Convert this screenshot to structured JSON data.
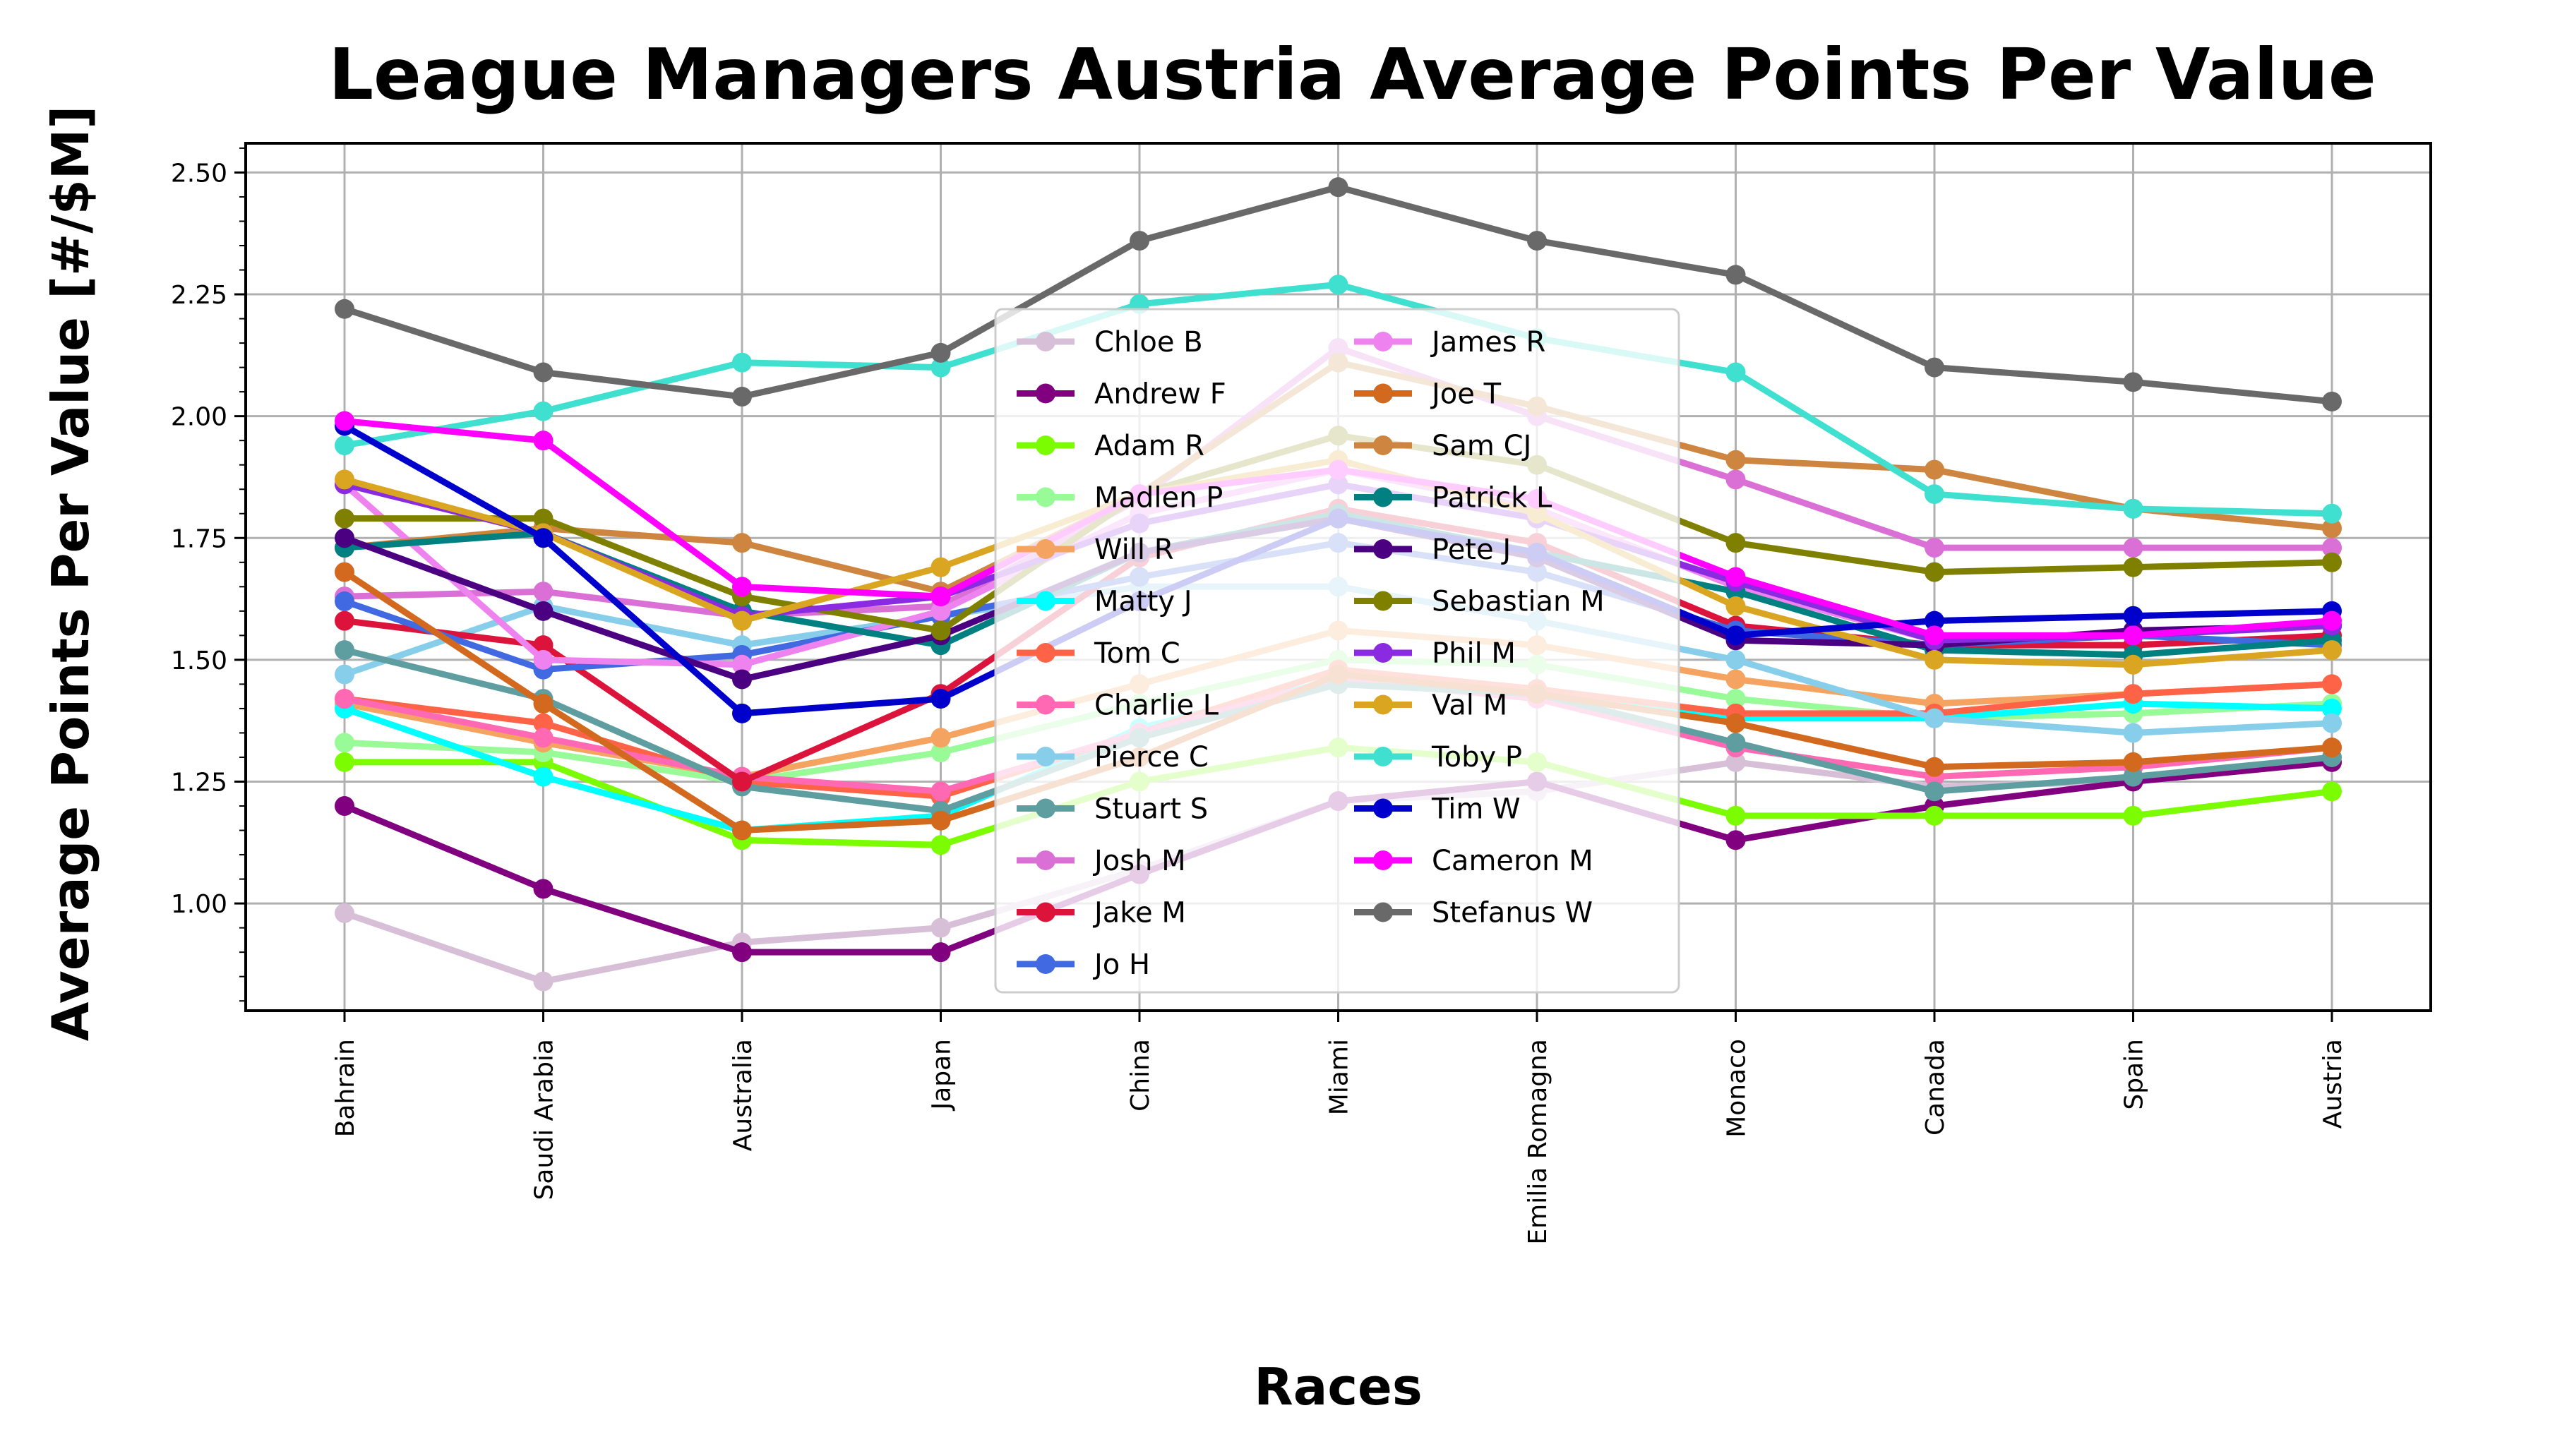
{
  "chart_data": {
    "type": "line",
    "title": "League Managers Austria Average Points Per Value",
    "xlabel": "Races",
    "ylabel": "Average Points Per Value [#/$M]",
    "categories": [
      "Bahrain",
      "Saudi Arabia",
      "Australia",
      "Japan",
      "China",
      "Miami",
      "Emilia Romagna",
      "Monaco",
      "Canada",
      "Spain",
      "Austria"
    ],
    "ylim": [
      0.78,
      2.56
    ],
    "yticks": [
      "1.00",
      "1.25",
      "1.50",
      "1.75",
      "2.00",
      "2.25",
      "2.50"
    ],
    "grid": true,
    "legend_position": "center",
    "series": [
      {
        "name": "Chloe B",
        "color": "#d8bfd8",
        "values": [
          0.98,
          0.84,
          0.92,
          0.95,
          1.07,
          1.21,
          1.23,
          1.29,
          1.24,
          1.25,
          1.29
        ]
      },
      {
        "name": "Andrew F",
        "color": "#800080",
        "values": [
          1.2,
          1.03,
          0.9,
          0.9,
          1.06,
          1.21,
          1.25,
          1.13,
          1.2,
          1.25,
          1.29
        ]
      },
      {
        "name": "Adam R",
        "color": "#7cfc00",
        "values": [
          1.29,
          1.29,
          1.13,
          1.12,
          1.25,
          1.32,
          1.29,
          1.18,
          1.18,
          1.18,
          1.23
        ]
      },
      {
        "name": "Madlen P",
        "color": "#98fb98",
        "values": [
          1.33,
          1.31,
          1.25,
          1.31,
          1.41,
          1.5,
          1.49,
          1.42,
          1.38,
          1.39,
          1.41
        ]
      },
      {
        "name": "Will R",
        "color": "#f4a460",
        "values": [
          1.41,
          1.33,
          1.26,
          1.34,
          1.45,
          1.56,
          1.53,
          1.46,
          1.41,
          1.43,
          1.45
        ]
      },
      {
        "name": "Matty J",
        "color": "#00ffff",
        "values": [
          1.4,
          1.26,
          1.15,
          1.18,
          1.36,
          1.46,
          1.44,
          1.38,
          1.38,
          1.41,
          1.4
        ]
      },
      {
        "name": "Tom C",
        "color": "#ff6347",
        "values": [
          1.42,
          1.37,
          1.25,
          1.22,
          1.35,
          1.48,
          1.44,
          1.39,
          1.39,
          1.43,
          1.45
        ]
      },
      {
        "name": "Charlie L",
        "color": "#ff69b4",
        "values": [
          1.42,
          1.34,
          1.26,
          1.23,
          1.35,
          1.46,
          1.42,
          1.32,
          1.26,
          1.28,
          1.32
        ]
      },
      {
        "name": "Pierce C",
        "color": "#87ceeb",
        "values": [
          1.47,
          1.61,
          1.53,
          1.59,
          1.65,
          1.65,
          1.58,
          1.5,
          1.38,
          1.35,
          1.37
        ]
      },
      {
        "name": "Stuart S",
        "color": "#5f9ea0",
        "values": [
          1.52,
          1.42,
          1.24,
          1.19,
          1.34,
          1.45,
          1.43,
          1.33,
          1.23,
          1.26,
          1.3
        ]
      },
      {
        "name": "Josh M",
        "color": "#da70d6",
        "values": [
          1.63,
          1.64,
          1.59,
          1.61,
          1.83,
          2.14,
          2.0,
          1.87,
          1.73,
          1.73,
          1.73
        ]
      },
      {
        "name": "Jake M",
        "color": "#dc143c",
        "values": [
          1.58,
          1.53,
          1.25,
          1.43,
          1.71,
          1.81,
          1.74,
          1.57,
          1.53,
          1.53,
          1.55
        ]
      },
      {
        "name": "Jo H",
        "color": "#4169e1",
        "values": [
          1.62,
          1.48,
          1.51,
          1.59,
          1.67,
          1.74,
          1.68,
          1.56,
          1.53,
          1.55,
          1.53
        ]
      },
      {
        "name": "James R",
        "color": "#ee82ee",
        "values": [
          1.86,
          1.5,
          1.49,
          1.6,
          1.8,
          1.89,
          1.81,
          1.65,
          1.54,
          1.55,
          1.57
        ]
      },
      {
        "name": "Joe T",
        "color": "#d2691e",
        "values": [
          1.68,
          1.41,
          1.15,
          1.17,
          1.3,
          1.47,
          1.43,
          1.37,
          1.28,
          1.29,
          1.32
        ]
      },
      {
        "name": "Sam CJ",
        "color": "#cd853f",
        "values": [
          1.73,
          1.77,
          1.74,
          1.64,
          1.84,
          2.11,
          2.02,
          1.91,
          1.89,
          1.81,
          1.77
        ]
      },
      {
        "name": "Patrick L",
        "color": "#008080",
        "values": [
          1.73,
          1.76,
          1.6,
          1.53,
          1.72,
          1.8,
          1.72,
          1.64,
          1.52,
          1.51,
          1.54
        ]
      },
      {
        "name": "Pete J",
        "color": "#4b0082",
        "values": [
          1.75,
          1.6,
          1.46,
          1.55,
          1.72,
          1.79,
          1.71,
          1.54,
          1.53,
          1.56,
          1.57
        ]
      },
      {
        "name": "Sebastian M",
        "color": "#808000",
        "values": [
          1.79,
          1.79,
          1.63,
          1.56,
          1.84,
          1.96,
          1.9,
          1.74,
          1.68,
          1.69,
          1.7
        ]
      },
      {
        "name": "Phil M",
        "color": "#8a2be2",
        "values": [
          1.86,
          1.76,
          1.59,
          1.63,
          1.78,
          1.86,
          1.79,
          1.66,
          1.54,
          1.55,
          1.57
        ]
      },
      {
        "name": "Val M",
        "color": "#daa520",
        "values": [
          1.87,
          1.76,
          1.58,
          1.69,
          1.84,
          1.91,
          1.8,
          1.61,
          1.5,
          1.49,
          1.52
        ]
      },
      {
        "name": "Toby P",
        "color": "#40e0d0",
        "values": [
          1.94,
          2.01,
          2.11,
          2.1,
          2.23,
          2.27,
          2.16,
          2.09,
          1.84,
          1.81,
          1.8
        ]
      },
      {
        "name": "Tim W",
        "color": "#0000cd",
        "values": [
          1.98,
          1.75,
          1.39,
          1.42,
          1.62,
          1.79,
          1.72,
          1.55,
          1.58,
          1.59,
          1.6
        ]
      },
      {
        "name": "Cameron M",
        "color": "#ff00ff",
        "values": [
          1.99,
          1.95,
          1.65,
          1.63,
          1.84,
          1.89,
          1.83,
          1.67,
          1.55,
          1.55,
          1.58
        ]
      },
      {
        "name": "Stefanus W",
        "color": "#696969",
        "values": [
          2.22,
          2.09,
          2.04,
          2.13,
          2.36,
          2.47,
          2.36,
          2.29,
          2.1,
          2.07,
          2.03
        ]
      }
    ]
  }
}
